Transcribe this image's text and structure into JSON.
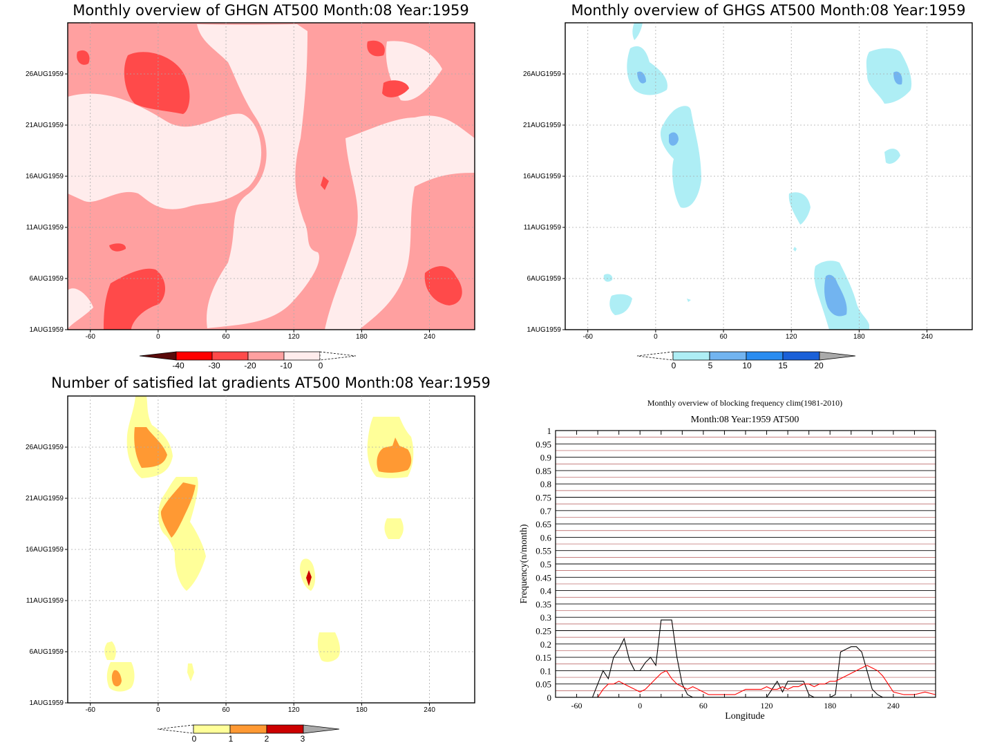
{
  "chart_data": [
    {
      "type": "heatmap",
      "title": "Monthly overview of GHGN AT500 Month:08 Year:1959",
      "x_ticks": [
        "-60",
        "0",
        "60",
        "120",
        "180",
        "240"
      ],
      "y_ticks": [
        "1AUG1959",
        "6AUG1959",
        "11AUG1959",
        "16AUG1959",
        "21AUG1959",
        "26AUG1959"
      ],
      "colorbar": {
        "labels": [
          "-40",
          "-30",
          "-20",
          "-10",
          "0"
        ],
        "colors": [
          "#5a0a0a",
          "#ff0000",
          "#ff4a4a",
          "#ffa0a0",
          "#ffecec"
        ]
      }
    },
    {
      "type": "heatmap",
      "title": "Monthly overview of GHGS AT500 Month:08 Year:1959",
      "x_ticks": [
        "-60",
        "0",
        "60",
        "120",
        "180",
        "240"
      ],
      "y_ticks": [
        "1AUG1959",
        "6AUG1959",
        "11AUG1959",
        "16AUG1959",
        "21AUG1959",
        "26AUG1959"
      ],
      "colorbar": {
        "labels": [
          "0",
          "5",
          "10",
          "15",
          "20"
        ],
        "colors": [
          "#aeeef5",
          "#72b4f0",
          "#2a8cf0",
          "#1a60d8",
          "#aaaaaa"
        ]
      }
    },
    {
      "type": "heatmap",
      "title": "Number of satisfied lat gradients AT500 Month:08 Year:1959",
      "x_ticks": [
        "-60",
        "0",
        "60",
        "120",
        "180",
        "240"
      ],
      "y_ticks": [
        "1AUG1959",
        "6AUG1959",
        "11AUG1959",
        "16AUG1959",
        "21AUG1959",
        "26AUG1959"
      ],
      "colorbar": {
        "labels": [
          "0",
          "1",
          "2",
          "3"
        ],
        "colors": [
          "#ffff99",
          "#ff9933",
          "#cc0000",
          "#aaaaaa"
        ]
      }
    },
    {
      "type": "line",
      "title": "Monthly overview of blocking frequency clim(1981-2010)",
      "subtitle": "Month:08 Year:1959  AT500",
      "xlabel": "Longitude",
      "ylabel": "Frequency(n/month)",
      "xlim": [
        -80,
        280
      ],
      "ylim": [
        0,
        1
      ],
      "x_ticks": [
        "-60",
        "0",
        "60",
        "120",
        "180",
        "240"
      ],
      "y_ticks": [
        "0",
        "0.05",
        "0.1",
        "0.15",
        "0.2",
        "0.25",
        "0.3",
        "0.35",
        "0.4",
        "0.45",
        "0.5",
        "0.55",
        "0.6",
        "0.65",
        "0.7",
        "0.75",
        "0.8",
        "0.85",
        "0.9",
        "0.95",
        "1"
      ],
      "grid": true,
      "series": [
        {
          "color": "#000000",
          "x": [
            -80,
            -45,
            -40,
            -35,
            -30,
            -25,
            -20,
            -15,
            -10,
            -5,
            0,
            5,
            10,
            15,
            20,
            25,
            30,
            35,
            40,
            45,
            50,
            120,
            125,
            130,
            135,
            140,
            145,
            150,
            155,
            160,
            165,
            170,
            175,
            180,
            185,
            190,
            195,
            200,
            205,
            210,
            215,
            220,
            225,
            230,
            280
          ],
          "values": [
            0,
            0,
            0.05,
            0.1,
            0.07,
            0.15,
            0.18,
            0.22,
            0.14,
            0.1,
            0.1,
            0.13,
            0.15,
            0.12,
            0.29,
            0.29,
            0.29,
            0.15,
            0.05,
            0.01,
            0,
            0,
            0.03,
            0.06,
            0.02,
            0.06,
            0.06,
            0.06,
            0.06,
            0.01,
            0,
            0,
            0,
            0,
            0.01,
            0.17,
            0.18,
            0.19,
            0.19,
            0.17,
            0.1,
            0.03,
            0.01,
            0,
            0
          ]
        },
        {
          "color": "#ff0000",
          "x": [
            -80,
            -40,
            -35,
            -30,
            -25,
            -20,
            -15,
            -10,
            -5,
            0,
            5,
            10,
            15,
            20,
            25,
            30,
            35,
            40,
            45,
            50,
            55,
            60,
            65,
            70,
            75,
            80,
            85,
            90,
            95,
            100,
            105,
            110,
            115,
            120,
            125,
            130,
            135,
            140,
            145,
            150,
            155,
            160,
            165,
            170,
            175,
            180,
            185,
            190,
            195,
            200,
            205,
            210,
            215,
            220,
            225,
            230,
            235,
            240,
            250,
            260,
            270,
            280
          ],
          "values": [
            0,
            0,
            0.03,
            0.05,
            0.05,
            0.06,
            0.05,
            0.04,
            0.03,
            0.02,
            0.03,
            0.05,
            0.07,
            0.09,
            0.1,
            0.07,
            0.05,
            0.04,
            0.03,
            0.04,
            0.03,
            0.02,
            0.01,
            0.01,
            0.01,
            0.01,
            0.01,
            0.01,
            0.02,
            0.03,
            0.03,
            0.03,
            0.03,
            0.04,
            0.03,
            0.03,
            0.04,
            0.03,
            0.04,
            0.04,
            0.05,
            0.05,
            0.04,
            0.05,
            0.05,
            0.06,
            0.06,
            0.07,
            0.08,
            0.09,
            0.1,
            0.11,
            0.12,
            0.11,
            0.1,
            0.08,
            0.05,
            0.02,
            0.01,
            0.01,
            0.02,
            0.01
          ]
        }
      ]
    }
  ]
}
